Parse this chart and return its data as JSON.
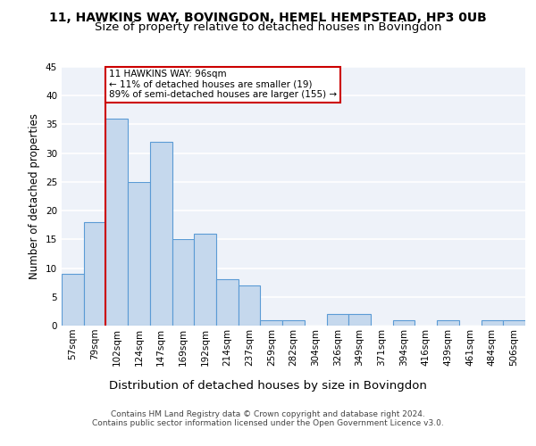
{
  "title": "11, HAWKINS WAY, BOVINGDON, HEMEL HEMPSTEAD, HP3 0UB",
  "subtitle": "Size of property relative to detached houses in Bovingdon",
  "xlabel": "Distribution of detached houses by size in Bovingdon",
  "ylabel": "Number of detached properties",
  "categories": [
    "57sqm",
    "79sqm",
    "102sqm",
    "124sqm",
    "147sqm",
    "169sqm",
    "192sqm",
    "214sqm",
    "237sqm",
    "259sqm",
    "282sqm",
    "304sqm",
    "326sqm",
    "349sqm",
    "371sqm",
    "394sqm",
    "416sqm",
    "439sqm",
    "461sqm",
    "484sqm",
    "506sqm"
  ],
  "values": [
    9,
    18,
    36,
    25,
    32,
    15,
    16,
    8,
    7,
    1,
    1,
    0,
    2,
    2,
    0,
    1,
    0,
    1,
    0,
    1,
    1
  ],
  "bar_color": "#c5d8ed",
  "bar_edge_color": "#5b9bd5",
  "annotation_text": "11 HAWKINS WAY: 96sqm\n← 11% of detached houses are smaller (19)\n89% of semi-detached houses are larger (155) →",
  "annotation_box_color": "#ffffff",
  "annotation_box_edge": "#cc0000",
  "ref_line_color": "#cc0000",
  "ylim": [
    0,
    45
  ],
  "yticks": [
    0,
    5,
    10,
    15,
    20,
    25,
    30,
    35,
    40,
    45
  ],
  "background_color": "#eef2f9",
  "grid_color": "#ffffff",
  "title_fontsize": 10,
  "subtitle_fontsize": 9.5,
  "xlabel_fontsize": 9.5,
  "ylabel_fontsize": 8.5,
  "tick_fontsize": 7.5,
  "footer_line1": "Contains HM Land Registry data © Crown copyright and database right 2024.",
  "footer_line2": "Contains public sector information licensed under the Open Government Licence v3.0."
}
